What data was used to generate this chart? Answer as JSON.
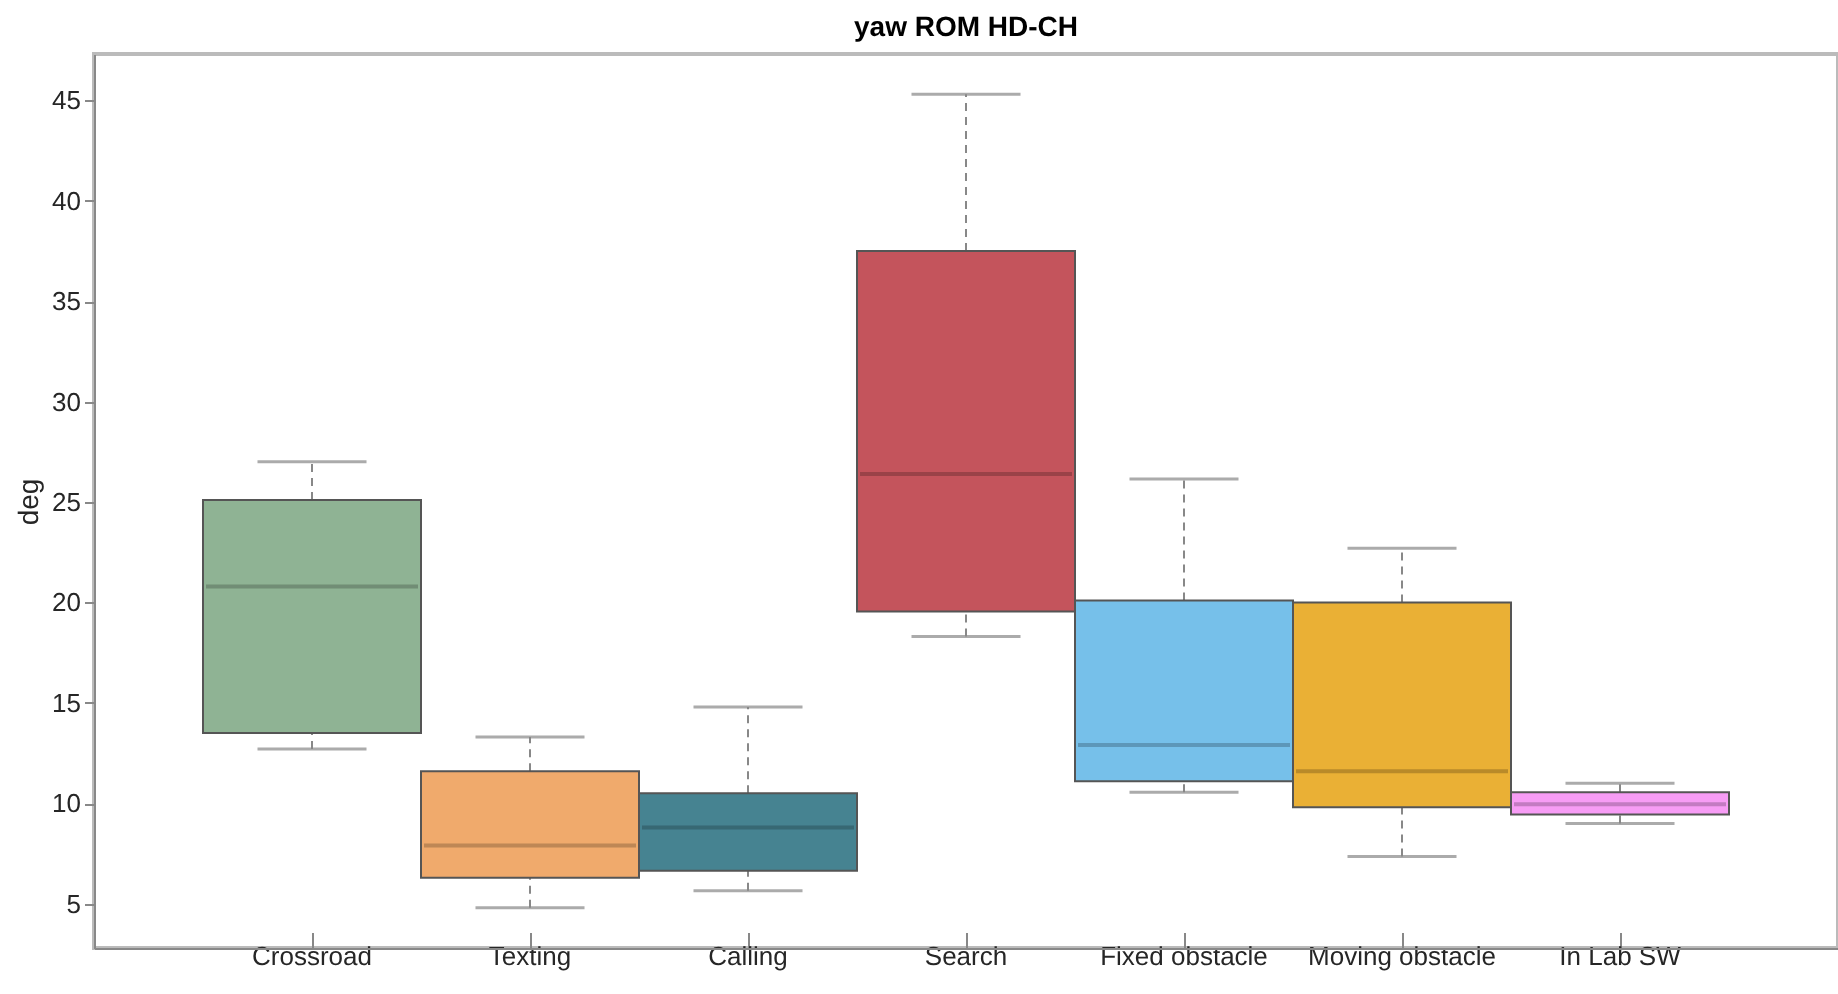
{
  "chart_data": {
    "type": "box",
    "title": "yaw ROM HD-CH",
    "ylabel": "deg",
    "categories": [
      "Crossroad",
      "Texting",
      "Calling",
      "Search",
      "Fixed obstacle",
      "Moving obstacle",
      "In Lab SW"
    ],
    "boxes": [
      {
        "low": 12.7,
        "q1": 13.5,
        "median": 20.8,
        "q3": 25.1,
        "high": 27.0
      },
      {
        "low": 4.8,
        "q1": 6.3,
        "median": 7.9,
        "q3": 11.6,
        "high": 13.3
      },
      {
        "low": 5.65,
        "q1": 6.65,
        "median": 8.8,
        "q3": 10.5,
        "high": 14.8
      },
      {
        "low": 18.3,
        "q1": 19.55,
        "median": 26.4,
        "q3": 37.5,
        "high": 45.3
      },
      {
        "low": 10.55,
        "q1": 11.1,
        "median": 12.9,
        "q3": 20.1,
        "high": 26.15
      },
      {
        "low": 7.35,
        "q1": 9.8,
        "median": 11.6,
        "q3": 20.0,
        "high": 22.7
      },
      {
        "low": 9.0,
        "q1": 9.45,
        "median": 9.95,
        "q3": 10.55,
        "high": 11.0
      }
    ],
    "colors": [
      "#8fb394",
      "#f0aa6c",
      "#468391",
      "#c4545c",
      "#76c0ea",
      "#eab035",
      "#f79cf5"
    ],
    "ylim": [
      2.8,
      47.3
    ],
    "yticks": [
      5,
      10,
      15,
      20,
      25,
      30,
      35,
      40,
      45
    ],
    "grid": false
  }
}
